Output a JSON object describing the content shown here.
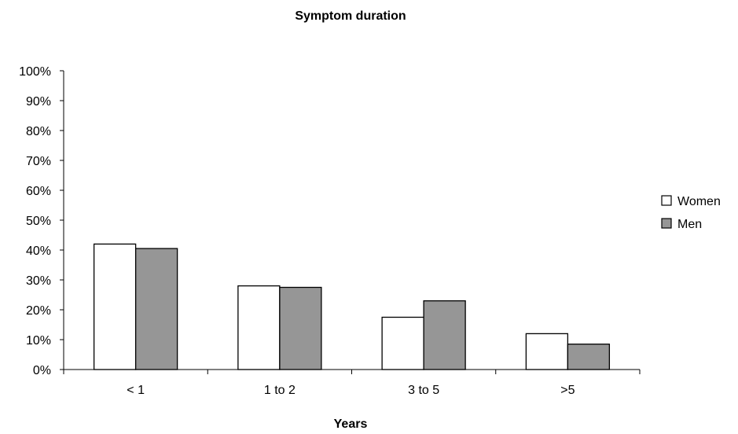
{
  "chart_data": {
    "type": "bar",
    "title": "Symptom duration",
    "xlabel": "Years",
    "ylabel": "",
    "categories": [
      "< 1",
      "1 to 2",
      "3 to 5",
      ">5"
    ],
    "series": [
      {
        "name": "Women",
        "values": [
          42,
          28,
          17.5,
          12
        ],
        "color": "#ffffff"
      },
      {
        "name": "Men",
        "values": [
          40.5,
          27.5,
          23,
          8.5
        ],
        "color": "#969696"
      }
    ],
    "ylim": [
      0,
      100
    ],
    "y_ticks": [
      0,
      10,
      20,
      30,
      40,
      50,
      60,
      70,
      80,
      90,
      100
    ],
    "y_tick_labels": [
      "0%",
      "10%",
      "20%",
      "30%",
      "40%",
      "50%",
      "60%",
      "70%",
      "80%",
      "90%",
      "100%"
    ],
    "grid": false,
    "legend_position": "right"
  }
}
